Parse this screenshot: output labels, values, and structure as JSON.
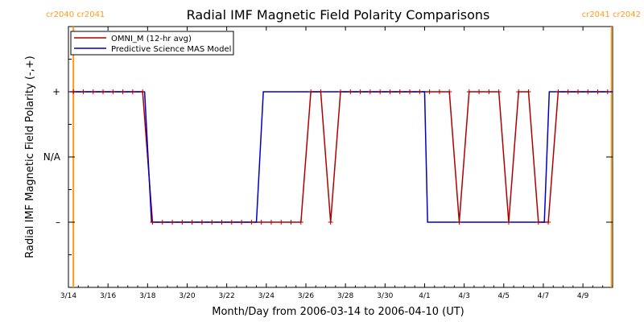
{
  "chart_data": {
    "type": "line",
    "title": "Radial IMF Magnetic Field Polarity Comparisons",
    "xlabel": "Month/Day from 2006-03-14 to 2006-04-10 (UT)",
    "ylabel": "Radial IMF Magnetic Field Polarity (-,+)",
    "x_unit": "days from 2006-03-14",
    "xlim": [
      0,
      27.5
    ],
    "ylim": [
      -2,
      2
    ],
    "x_tick_labels": [
      {
        "x": 0,
        "label": "3/14"
      },
      {
        "x": 2,
        "label": "3/16"
      },
      {
        "x": 4,
        "label": "3/18"
      },
      {
        "x": 6,
        "label": "3/20"
      },
      {
        "x": 8,
        "label": "3/22"
      },
      {
        "x": 10,
        "label": "3/24"
      },
      {
        "x": 12,
        "label": "3/26"
      },
      {
        "x": 14,
        "label": "3/28"
      },
      {
        "x": 16,
        "label": "3/30"
      },
      {
        "x": 18,
        "label": "4/1"
      },
      {
        "x": 20,
        "label": "4/3"
      },
      {
        "x": 22,
        "label": "4/5"
      },
      {
        "x": 24,
        "label": "4/7"
      },
      {
        "x": 26,
        "label": "4/9"
      }
    ],
    "y_tick_labels": [
      {
        "y": 1,
        "label": "+"
      },
      {
        "y": 0,
        "label": "N/A"
      },
      {
        "y": -1,
        "label": "–"
      }
    ],
    "legend_position": "top-left",
    "carrington_markers": [
      {
        "x": 0.25,
        "label": "cr2040 cr2041",
        "side": "left"
      },
      {
        "x": 27.45,
        "label": "cr2041 cr2042",
        "side": "right"
      }
    ],
    "series": [
      {
        "name": "OMNI_M (12-hr avg)",
        "color": "#b00000",
        "marker": "plus",
        "points": [
          [
            0.25,
            1
          ],
          [
            0.75,
            1
          ],
          [
            1.25,
            1
          ],
          [
            1.75,
            1
          ],
          [
            2.25,
            1
          ],
          [
            2.75,
            1
          ],
          [
            3.25,
            1
          ],
          [
            3.75,
            1
          ],
          [
            4.25,
            -1
          ],
          [
            4.75,
            -1
          ],
          [
            5.25,
            -1
          ],
          [
            5.75,
            -1
          ],
          [
            6.25,
            -1
          ],
          [
            6.75,
            -1
          ],
          [
            7.25,
            -1
          ],
          [
            7.75,
            -1
          ],
          [
            8.25,
            -1
          ],
          [
            8.75,
            -1
          ],
          [
            9.25,
            -1
          ],
          [
            9.75,
            -1
          ],
          [
            10.25,
            -1
          ],
          [
            10.75,
            -1
          ],
          [
            11.25,
            -1
          ],
          [
            11.75,
            -1
          ],
          [
            12.25,
            1
          ],
          [
            12.75,
            1
          ],
          [
            13.25,
            -1
          ],
          [
            13.75,
            1
          ],
          [
            14.25,
            1
          ],
          [
            14.75,
            1
          ],
          [
            15.25,
            1
          ],
          [
            15.75,
            1
          ],
          [
            16.25,
            1
          ],
          [
            16.75,
            1
          ],
          [
            17.25,
            1
          ],
          [
            17.75,
            1
          ],
          [
            18.25,
            1
          ],
          [
            18.75,
            1
          ],
          [
            19.25,
            1
          ],
          [
            19.75,
            -1
          ],
          [
            20.25,
            1
          ],
          [
            20.75,
            1
          ],
          [
            21.25,
            1
          ],
          [
            21.75,
            1
          ],
          [
            22.25,
            -1
          ],
          [
            22.75,
            1
          ],
          [
            23.25,
            1
          ],
          [
            23.75,
            -1
          ],
          [
            24.25,
            -1
          ],
          [
            24.75,
            1
          ],
          [
            25.25,
            1
          ],
          [
            25.75,
            1
          ],
          [
            26.25,
            1
          ],
          [
            26.75,
            1
          ],
          [
            27.25,
            1
          ]
        ]
      },
      {
        "name": "Predictive Science MAS Model",
        "color": "#0000c8",
        "marker": "none",
        "points": [
          [
            0.1,
            1
          ],
          [
            3.85,
            1
          ],
          [
            4.2,
            -1
          ],
          [
            9.5,
            -1
          ],
          [
            9.85,
            1
          ],
          [
            18.0,
            1
          ],
          [
            18.15,
            -1
          ],
          [
            24.05,
            -1
          ],
          [
            24.3,
            1
          ],
          [
            27.5,
            1
          ]
        ]
      }
    ]
  }
}
